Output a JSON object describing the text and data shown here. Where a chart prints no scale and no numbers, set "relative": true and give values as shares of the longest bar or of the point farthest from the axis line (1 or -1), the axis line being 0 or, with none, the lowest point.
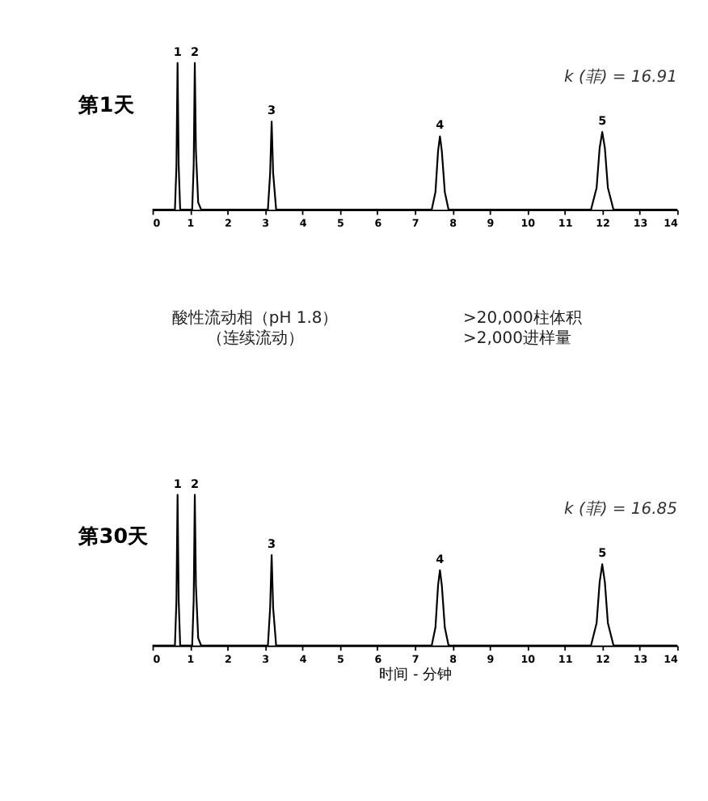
{
  "chart_data": [
    {
      "type": "line",
      "title": "第1天",
      "relative": true,
      "xlim": [
        0,
        14
      ],
      "xticks": [
        0,
        1,
        2,
        3,
        4,
        5,
        6,
        7,
        8,
        9,
        10,
        11,
        12,
        13,
        14
      ],
      "tick_labels": "x",
      "grid": false,
      "series": [
        {
          "color": "#000000",
          "x": [
            0,
            0.6,
            0.64,
            0.67,
            0.7,
            0.74,
            1.06,
            1.1,
            1.13,
            1.16,
            1.22,
            1.3,
            3.08,
            3.14,
            3.18,
            3.22,
            3.3,
            7.45,
            7.55,
            7.62,
            7.67,
            7.72,
            7.8,
            7.9,
            11.7,
            11.85,
            11.93,
            12.0,
            12.07,
            12.15,
            12.3,
            14
          ],
          "values": [
            0,
            0,
            0.3,
            1.0,
            0.3,
            0,
            0,
            0.3,
            1.0,
            0.4,
            0.05,
            0,
            0,
            0.25,
            0.6,
            0.25,
            0,
            0,
            0.12,
            0.4,
            0.5,
            0.4,
            0.12,
            0,
            0,
            0.15,
            0.42,
            0.53,
            0.42,
            0.15,
            0,
            0
          ]
        }
      ],
      "annotations": [
        "k (菲) = 16.91",
        {
          "text": "1",
          "x": 0.67,
          "y": 1.0
        },
        {
          "text": "2",
          "x": 1.13,
          "y": 1.0
        },
        {
          "text": "3",
          "x": 3.18,
          "y": 0.6
        },
        {
          "text": "4",
          "x": 7.67,
          "y": 0.5
        },
        {
          "text": "5",
          "x": 12.0,
          "y": 0.53
        }
      ]
    },
    {
      "type": "other",
      "annotations": [
        "酸性流动相（pH 1.8）",
        "（连续流动）",
        ">20,000柱体积",
        ">2,000进样量"
      ]
    },
    {
      "type": "line",
      "title": "第30天",
      "xlabel": "时间 - 分钟",
      "relative": true,
      "xlim": [
        0,
        14
      ],
      "xticks": [
        0,
        1,
        2,
        3,
        4,
        5,
        6,
        7,
        8,
        9,
        10,
        11,
        12,
        13,
        14
      ],
      "tick_labels": "x",
      "grid": false,
      "series": [
        {
          "color": "#000000",
          "x": [
            0,
            0.6,
            0.64,
            0.67,
            0.7,
            0.74,
            1.06,
            1.1,
            1.13,
            1.16,
            1.22,
            1.3,
            3.08,
            3.14,
            3.18,
            3.22,
            3.3,
            7.45,
            7.55,
            7.62,
            7.67,
            7.72,
            7.8,
            7.9,
            11.7,
            11.85,
            11.93,
            12.0,
            12.07,
            12.15,
            12.3,
            14
          ],
          "values": [
            0,
            0,
            0.3,
            1.0,
            0.3,
            0,
            0,
            0.3,
            1.0,
            0.4,
            0.05,
            0,
            0,
            0.25,
            0.6,
            0.25,
            0,
            0,
            0.12,
            0.4,
            0.5,
            0.4,
            0.12,
            0,
            0,
            0.15,
            0.42,
            0.54,
            0.42,
            0.15,
            0,
            0
          ]
        }
      ],
      "annotations": [
        "k (菲) = 16.85",
        {
          "text": "1",
          "x": 0.67,
          "y": 1.0
        },
        {
          "text": "2",
          "x": 1.13,
          "y": 1.0
        },
        {
          "text": "3",
          "x": 3.18,
          "y": 0.6
        },
        {
          "text": "4",
          "x": 7.67,
          "y": 0.5
        },
        {
          "text": "5",
          "x": 12.0,
          "y": 0.54
        }
      ]
    }
  ]
}
